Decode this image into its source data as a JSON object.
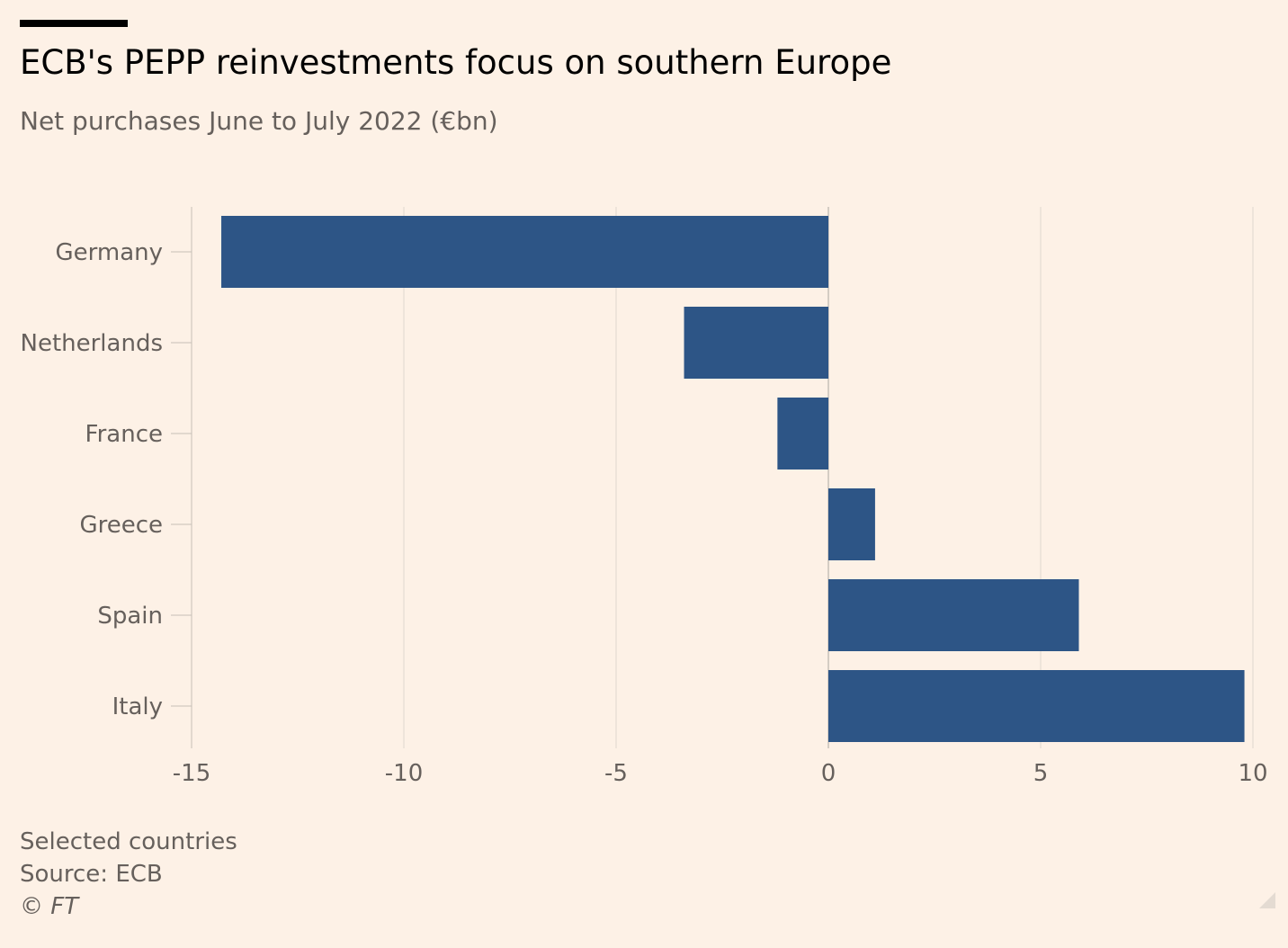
{
  "header": {
    "title": "ECB's PEPP reinvestments focus on southern Europe",
    "subtitle": "Net purchases June to July 2022 (€bn)"
  },
  "chart_data": {
    "type": "bar",
    "orientation": "horizontal",
    "categories": [
      "Germany",
      "Netherlands",
      "France",
      "Greece",
      "Spain",
      "Italy"
    ],
    "values": [
      -14.3,
      -3.4,
      -1.2,
      1.1,
      5.9,
      9.8
    ],
    "xlim": [
      -15,
      10
    ],
    "xticks": [
      "-15",
      "-10",
      "-5",
      "0",
      "5",
      "10"
    ],
    "title": "ECB's PEPP reinvestments focus on southern Europe",
    "xlabel": "",
    "ylabel": "",
    "grid": true,
    "bar_color": "#2d5586",
    "grid_color": "#e0d8cf",
    "zero_line_color": "#c7bfb7"
  },
  "footer": {
    "note": "Selected countries",
    "source": "Source: ECB",
    "copyright": "© FT"
  },
  "colors": {
    "background": "#fdf1e6",
    "bar": "#2d5586"
  }
}
